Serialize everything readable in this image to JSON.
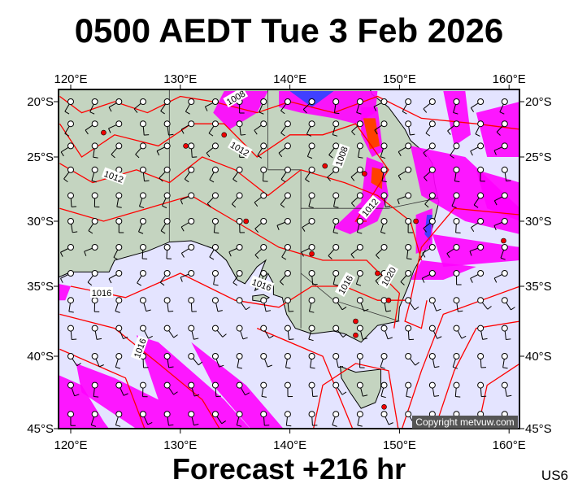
{
  "header": {
    "title": "0500 AEDT Tue 3 Feb 2026"
  },
  "footer": {
    "forecast": "Forecast +216 hr",
    "model_code": "US6"
  },
  "map": {
    "lon_labels": [
      "120°E",
      "130°E",
      "140°E",
      "150°E",
      "160°E"
    ],
    "lat_labels": [
      "20°S",
      "25°S",
      "30°S",
      "35°S",
      "40°S",
      "45°S"
    ],
    "isobar_labels": [
      "1008",
      "1012",
      "1012",
      "1008",
      "1012",
      "1016",
      "1016",
      "1016",
      "1020",
      "1016"
    ],
    "copyright": "Copyright metvuw.com",
    "colors": {
      "ocean": "#e4e4ff",
      "land": "#c4d4c0",
      "isobar": "#ff0000",
      "rain_light": "#ff00ff",
      "rain_heavy": "#ff4000",
      "rain_mid": "#4040ff"
    }
  }
}
